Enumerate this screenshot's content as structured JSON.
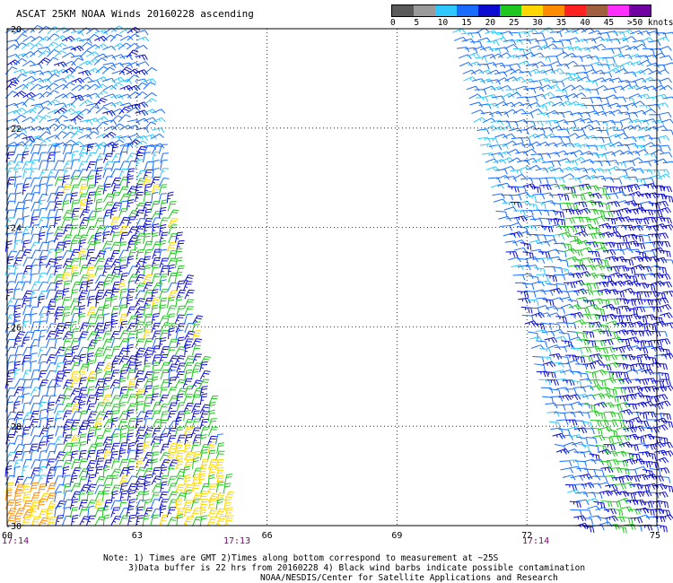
{
  "title": "ASCAT 25KM NOAA Winds 20160228 ascending",
  "legend": {
    "labels": [
      "0",
      "5",
      "10",
      "15",
      "20",
      "25",
      "30",
      "35",
      "40",
      "45",
      ">50 knots"
    ],
    "colors": [
      "#5a5a5a",
      "#9a9a9a",
      "#2ec8ff",
      "#1a6bff",
      "#0a0ad0",
      "#1ec81e",
      "#ffd700",
      "#ff8c00",
      "#ff2020",
      "#a06040",
      "#ff30ff",
      "#7000a0"
    ]
  },
  "map": {
    "lat_labels": [
      "-20",
      "-22",
      "-24",
      "-26",
      "-28",
      "-30"
    ],
    "lon_labels": [
      "60",
      "63",
      "66",
      "69",
      "72",
      "75"
    ],
    "lat_range": [
      -30,
      -20
    ],
    "lon_range": [
      60,
      75
    ]
  },
  "times": {
    "t1": "17:14",
    "t2": "17:13",
    "t3": "17:14"
  },
  "notes": {
    "line1": "Note: 1) Times are GMT 2)Times along bottom correspond to measurement at ~25S",
    "line2": "3)Data buffer is 22 hrs from 20160228 4) Black wind barbs indicate possible contamination",
    "line3": "NOAA/NESDIS/Center for Satellite Applications and Research"
  }
}
